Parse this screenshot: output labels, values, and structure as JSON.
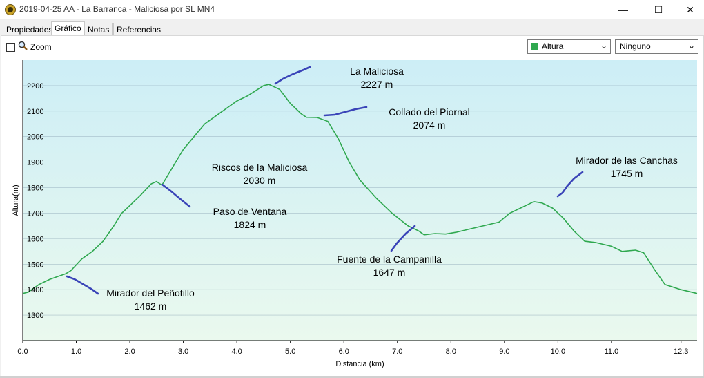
{
  "window": {
    "title": "2019-04-25 AA - La Barranca - Maliciosa por SL MN4",
    "minimize": "—",
    "maximize": "☐",
    "close": "✕"
  },
  "tabs": [
    "Propiedades",
    "Gráfico",
    "Notas",
    "Referencias"
  ],
  "toolbar": {
    "zoom_label": "Zoom",
    "series_select": "Altura",
    "series_color": "#2fa84f",
    "second_select": "Ninguno"
  },
  "chart_data": {
    "type": "area",
    "xlabel": "Distancia  (km)",
    "ylabel": "Altura(m)",
    "xlim": [
      0,
      12.6
    ],
    "ylim": [
      1200,
      2300
    ],
    "xticks": [
      "0.0",
      "1.0",
      "2.0",
      "3.0",
      "4.0",
      "5.0",
      "6.0",
      "7.0",
      "8.0",
      "9.0",
      "10.0",
      "11.0",
      "12.3"
    ],
    "xtick_values": [
      0,
      1,
      2,
      3,
      4,
      5,
      6,
      7,
      8,
      9,
      10,
      11,
      12.3
    ],
    "yticks": [
      1300,
      1400,
      1500,
      1600,
      1700,
      1800,
      1900,
      2000,
      2100,
      2200
    ],
    "grid": true,
    "line_color": "#2fa84f",
    "fill_top": "#cdeef6",
    "fill_bottom": "#eaf9ee",
    "series": [
      {
        "name": "Altura",
        "x": [
          0,
          0.1,
          0.3,
          0.5,
          0.7,
          0.8,
          0.9,
          1.1,
          1.3,
          1.5,
          1.7,
          1.85,
          2.0,
          2.2,
          2.4,
          2.5,
          2.6,
          2.8,
          3.0,
          3.2,
          3.4,
          3.6,
          3.8,
          4.0,
          4.2,
          4.35,
          4.5,
          4.6,
          4.8,
          5.0,
          5.2,
          5.3,
          5.5,
          5.7,
          5.9,
          6.1,
          6.3,
          6.6,
          6.9,
          7.2,
          7.4,
          7.5,
          7.7,
          7.9,
          8.1,
          8.3,
          8.6,
          8.9,
          9.1,
          9.4,
          9.55,
          9.7,
          9.9,
          10.1,
          10.3,
          10.5,
          10.7,
          11.0,
          11.2,
          11.3,
          11.45,
          11.6,
          11.8,
          12.0,
          12.3,
          12.6
        ],
        "y": [
          1385,
          1390,
          1420,
          1440,
          1455,
          1462,
          1475,
          1520,
          1550,
          1590,
          1650,
          1700,
          1730,
          1770,
          1815,
          1824,
          1810,
          1880,
          1950,
          2000,
          2050,
          2080,
          2110,
          2140,
          2160,
          2180,
          2200,
          2205,
          2185,
          2130,
          2090,
          2076,
          2075,
          2060,
          1990,
          1900,
          1830,
          1760,
          1700,
          1650,
          1630,
          1615,
          1620,
          1618,
          1625,
          1635,
          1650,
          1665,
          1700,
          1730,
          1745,
          1740,
          1720,
          1680,
          1630,
          1590,
          1585,
          1570,
          1550,
          1552,
          1555,
          1545,
          1480,
          1420,
          1400,
          1385
        ]
      }
    ],
    "annotations": [
      {
        "name": "La Maliciosa",
        "value": "2227 m"
      },
      {
        "name": "Collado del Piornal",
        "value": "2074 m"
      },
      {
        "name": "Riscos de la Maliciosa",
        "value": "2030 m"
      },
      {
        "name": "Paso de Ventana",
        "value": "1824 m"
      },
      {
        "name": "Mirador de las Canchas",
        "value": "1745 m"
      },
      {
        "name": "Fuente de la Campanilla",
        "value": "1647 m"
      },
      {
        "name": "Mirador del Peñotillo",
        "value": "1462 m"
      }
    ],
    "annotation_color": "#3a44b8"
  }
}
